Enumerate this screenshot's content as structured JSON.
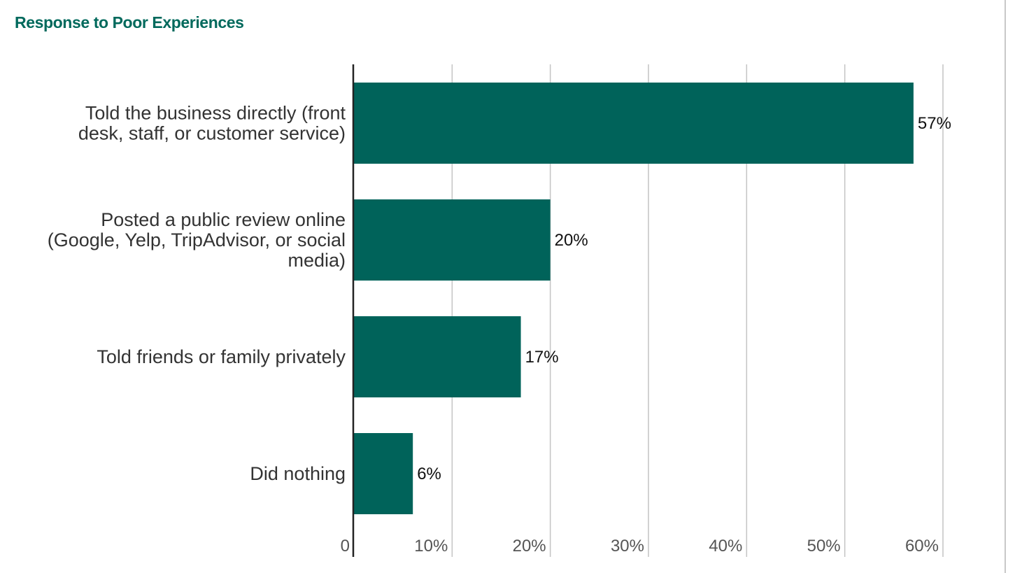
{
  "chart_data": {
    "type": "bar",
    "orientation": "horizontal",
    "title": "Response to Poor Experiences",
    "categories": [
      [
        "Told the business directly (front",
        "desk, staff, or customer service)"
      ],
      [
        "Posted a public review online",
        "(Google, Yelp, TripAdvisor, or social",
        "media)"
      ],
      [
        "Told friends or family privately"
      ],
      [
        "Did nothing"
      ]
    ],
    "values": [
      57,
      20,
      17,
      6
    ],
    "value_labels": [
      "57%",
      "20%",
      "17%",
      "6%"
    ],
    "x_ticks": [
      0,
      10,
      20,
      30,
      40,
      50,
      60
    ],
    "x_tick_labels": [
      "0",
      "10%",
      "20%",
      "30%",
      "40%",
      "50%",
      "60%"
    ],
    "xlim": [
      0,
      60
    ],
    "grid": true,
    "bar_color": "#00635a"
  }
}
